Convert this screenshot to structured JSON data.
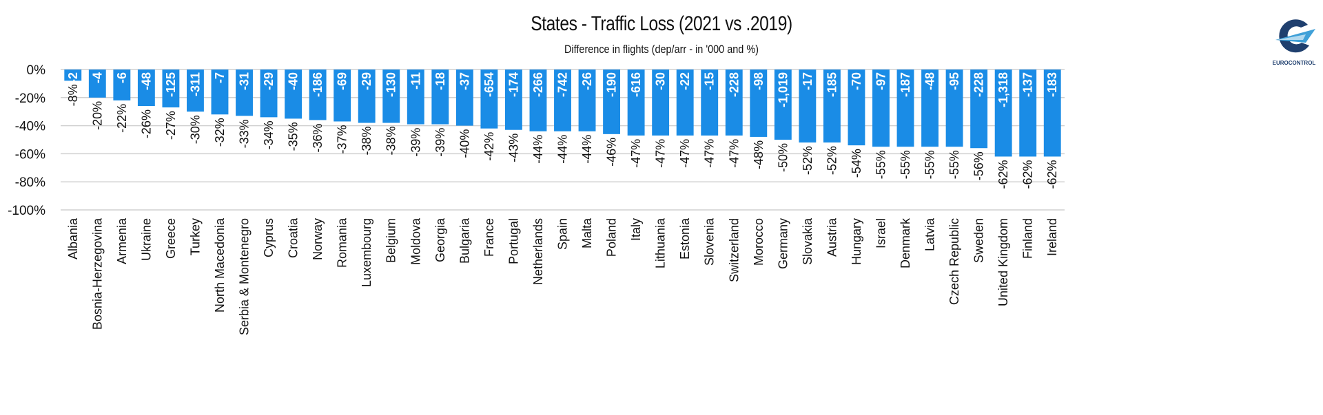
{
  "chart_data": {
    "type": "bar",
    "title": "States - Traffic Loss (2021 vs .2019)",
    "subtitle": "Difference in flights (dep/arr - in '000 and %)",
    "xlabel": "",
    "ylabel": "",
    "ylim": [
      -100,
      0
    ],
    "yticks": [
      0,
      -20,
      -40,
      -60,
      -80,
      -100
    ],
    "ytick_labels": [
      "0%",
      "-20%",
      "-40%",
      "-60%",
      "-80%",
      "-100%"
    ],
    "grid": true,
    "legend": "none",
    "bar_color": "#1a8ce6",
    "categories": [
      "Albania",
      "Bosnia-Herzegovina",
      "Armenia",
      "Ukraine",
      "Greece",
      "Turkey",
      "North Macedonia",
      "Serbia & Montenegro",
      "Cyprus",
      "Croatia",
      "Norway",
      "Romania",
      "Luxembourg",
      "Belgium",
      "Moldova",
      "Georgia",
      "Bulgaria",
      "France",
      "Portugal",
      "Netherlands",
      "Spain",
      "Malta",
      "Poland",
      "Italy",
      "Lithuania",
      "Estonia",
      "Slovenia",
      "Switzerland",
      "Morocco",
      "Germany",
      "Slovakia",
      "Austria",
      "Hungary",
      "Israel",
      "Denmark",
      "Latvia",
      "Czech Republic",
      "Sweden",
      "United Kingdom",
      "Finland",
      "Ireland"
    ],
    "series": [
      {
        "name": "Difference in flights (%)",
        "values": [
          -8,
          -20,
          -22,
          -26,
          -27,
          -30,
          -32,
          -33,
          -34,
          -35,
          -36,
          -37,
          -38,
          -38,
          -39,
          -39,
          -40,
          -42,
          -43,
          -44,
          -44,
          -44,
          -46,
          -47,
          -47,
          -47,
          -47,
          -47,
          -48,
          -50,
          -52,
          -52,
          -54,
          -55,
          -55,
          -55,
          -55,
          -56,
          -62,
          -62,
          -62
        ],
        "labels": [
          "-8%",
          "-20%",
          "-22%",
          "-26%",
          "-27%",
          "-30%",
          "-32%",
          "-33%",
          "-34%",
          "-35%",
          "-36%",
          "-37%",
          "-38%",
          "-38%",
          "-39%",
          "-39%",
          "-40%",
          "-42%",
          "-43%",
          "-44%",
          "-44%",
          "-44%",
          "-46%",
          "-47%",
          "-47%",
          "-47%",
          "-47%",
          "-47%",
          "-48%",
          "-50%",
          "-52%",
          "-52%",
          "-54%",
          "-55%",
          "-55%",
          "-55%",
          "-55%",
          "-56%",
          "-62%",
          "-62%",
          "-62%"
        ]
      },
      {
        "name": "Difference in flights ('000)",
        "values": [
          -2,
          -4,
          -6,
          -48,
          -125,
          -311,
          -7,
          -31,
          -29,
          -40,
          -186,
          -69,
          -29,
          -130,
          -11,
          -18,
          -37,
          -654,
          -174,
          -266,
          -742,
          -26,
          -190,
          -616,
          -30,
          -22,
          -15,
          -228,
          -98,
          -1019,
          -17,
          -185,
          -70,
          -97,
          -187,
          -48,
          -95,
          -228,
          -1318,
          -137,
          -183
        ],
        "labels": [
          "-2",
          "-4",
          "-6",
          "-48",
          "-125",
          "-311",
          "-7",
          "-31",
          "-29",
          "-40",
          "-186",
          "-69",
          "-29",
          "-130",
          "-11",
          "-18",
          "-37",
          "-654",
          "-174",
          "-266",
          "-742",
          "-26",
          "-190",
          "-616",
          "-30",
          "-22",
          "-15",
          "-228",
          "-98",
          "-1,019",
          "-17",
          "-185",
          "-70",
          "-97",
          "-187",
          "-48",
          "-95",
          "-228",
          "-1,318",
          "-137",
          "-183"
        ]
      }
    ]
  },
  "logo": {
    "text": "EUROCONTROL",
    "colors": {
      "dark": "#1f3f6e",
      "light": "#3fa0d8"
    }
  }
}
